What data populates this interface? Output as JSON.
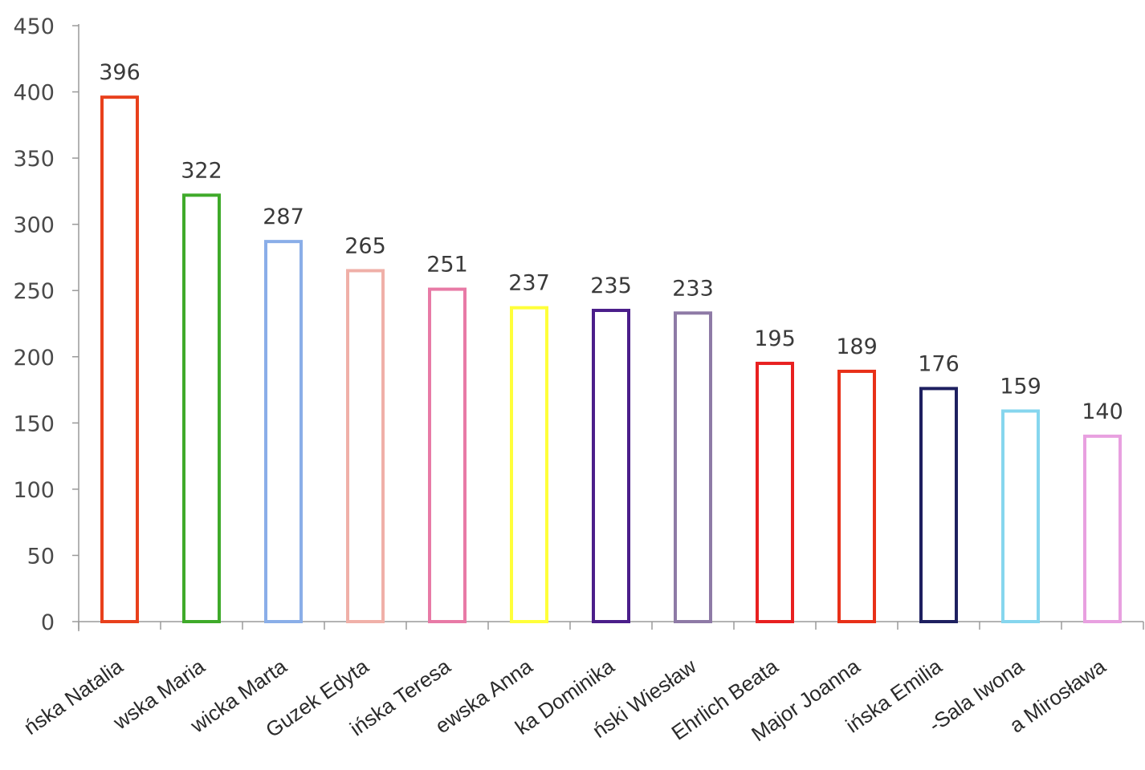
{
  "chart_data": {
    "type": "bar",
    "title": "",
    "xlabel": "",
    "ylabel": "",
    "ylim": [
      0,
      450
    ],
    "yticks": [
      0,
      50,
      100,
      150,
      200,
      250,
      300,
      350,
      400,
      450
    ],
    "grid": false,
    "legend": "none",
    "bar_style": "outlined",
    "categories": [
      "ńska Natalia",
      "wska Maria",
      "wicka Marta",
      "Guzek Edyta",
      "ińska Teresa",
      "ewska Anna",
      "ka Dominika",
      "ński Wiesław",
      "Ehrlich Beata",
      "Major Joanna",
      "ińska Emilia",
      "-Sala Iwona",
      "a Mirosława"
    ],
    "values": [
      396,
      322,
      287,
      265,
      251,
      237,
      235,
      233,
      195,
      189,
      176,
      159,
      140
    ],
    "colors": [
      "#e8401c",
      "#3faa2a",
      "#8aaee8",
      "#f0b0a8",
      "#e87aa6",
      "#ffff3a",
      "#4b1e8a",
      "#8e7aa6",
      "#e82020",
      "#e83018",
      "#1e2060",
      "#86d6ee",
      "#e8a0e0"
    ]
  }
}
